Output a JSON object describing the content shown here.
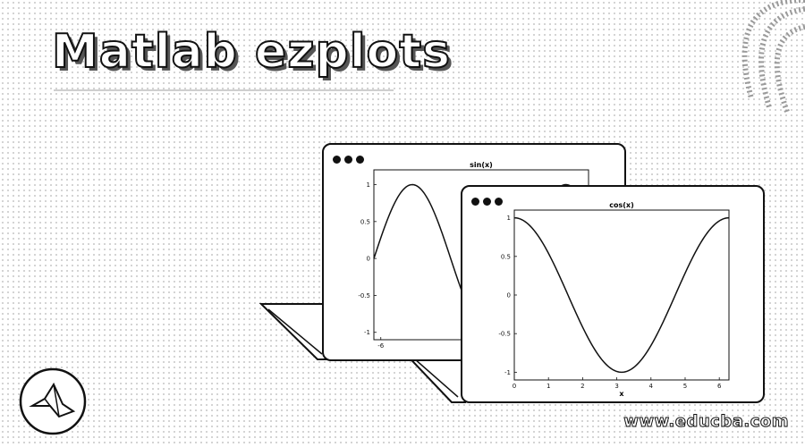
{
  "page": {
    "title": "Matlab ezplots",
    "watermark": "www.educba.com",
    "logo_icon": "matlab-membrane-logo-icon"
  },
  "colors": {
    "ink": "#111111",
    "background": "#ffffff",
    "dot_pattern": "#c9c9c9"
  },
  "chart_data": [
    {
      "type": "line",
      "title": "sin(x)",
      "function": "sin",
      "xlabel": "",
      "xlim": [
        -6.2832,
        2.5
      ],
      "ylim": [
        -1.1,
        1.2
      ],
      "yticks": [
        -1,
        -0.5,
        0,
        0.5,
        1
      ],
      "ytick_labels": [
        "-1",
        "-0.5",
        "0",
        "0.5",
        "1"
      ],
      "xticks": [
        -6
      ],
      "xtick_labels": [
        "-6"
      ]
    },
    {
      "type": "line",
      "title": "cos(x)",
      "function": "cos",
      "xlabel": "x",
      "xlim": [
        0,
        6.2832
      ],
      "ylim": [
        -1.1,
        1.1
      ],
      "yticks": [
        -1,
        -0.5,
        0,
        0.5,
        1
      ],
      "ytick_labels": [
        "-1",
        "-0.5",
        "0",
        "0.5",
        "1"
      ],
      "xticks": [
        0,
        1,
        2,
        3,
        4,
        5,
        6
      ],
      "xtick_labels": [
        "0",
        "1",
        "2",
        "3",
        "4",
        "5",
        "6"
      ]
    }
  ]
}
